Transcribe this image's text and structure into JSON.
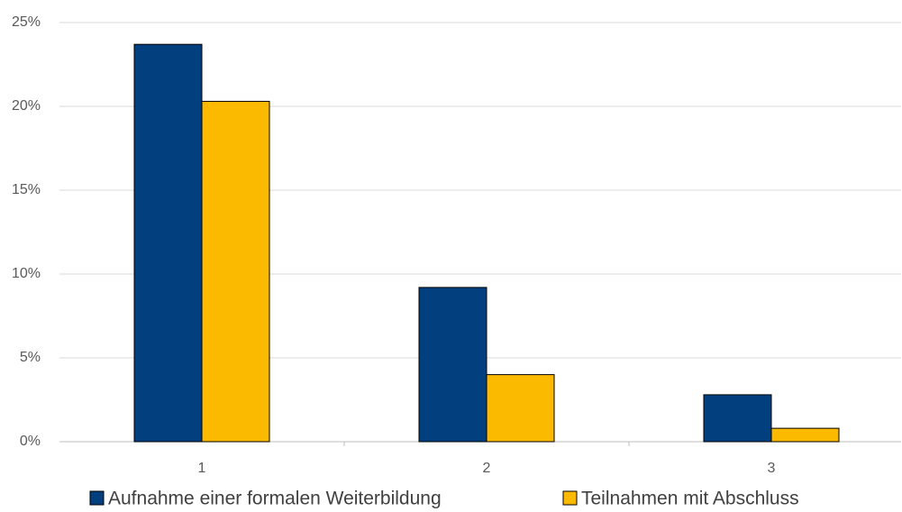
{
  "chart_data": {
    "type": "bar",
    "categories": [
      "1",
      "2",
      "3"
    ],
    "series": [
      {
        "name": "Aufnahme einer formalen Weiterbildung",
        "color": "#023f7e",
        "values": [
          23.7,
          9.2,
          2.8
        ]
      },
      {
        "name": "Teilnahmen mit Abschluss",
        "color": "#fbba00",
        "values": [
          20.3,
          4.0,
          0.8
        ]
      }
    ],
    "ylim": [
      0,
      25
    ],
    "yticks": [
      {
        "value": 0,
        "label": "0%"
      },
      {
        "value": 5,
        "label": "5%"
      },
      {
        "value": 10,
        "label": "10%"
      },
      {
        "value": 15,
        "label": "15%"
      },
      {
        "value": 20,
        "label": "20%"
      },
      {
        "value": 25,
        "label": "25%"
      }
    ],
    "grid": true,
    "legend": "bottom"
  }
}
